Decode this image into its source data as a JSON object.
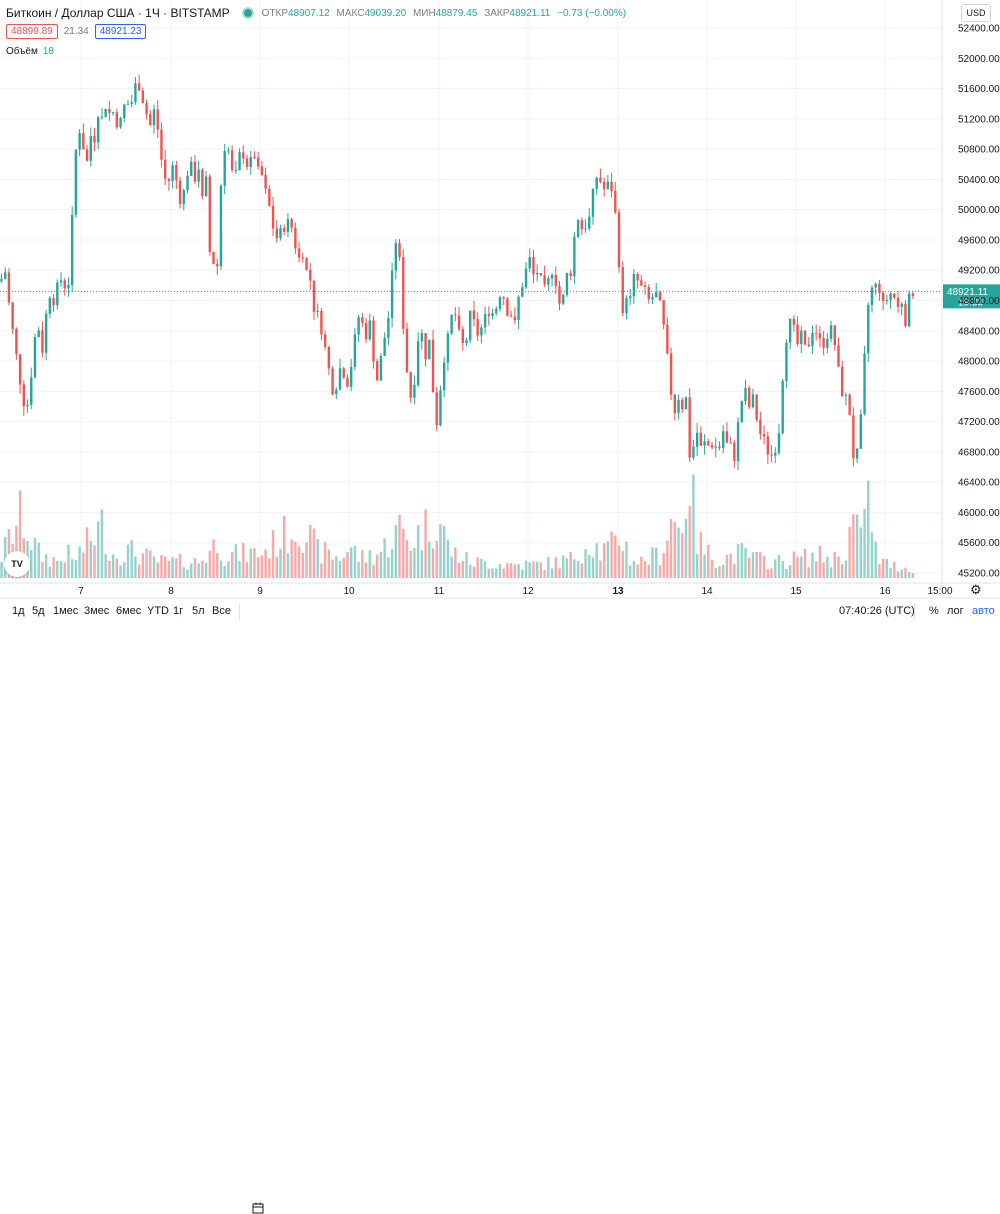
{
  "header": {
    "symbol": "Биткоин / Доллар США · 1Ч · BITSTAMP",
    "open_label": "ОТКР",
    "open": "48907.12",
    "high_label": "МАКС",
    "high": "49039.20",
    "low_label": "МИН",
    "low": "48879.45",
    "close_label": "ЗАКР",
    "close": "48921.11",
    "change": "−0.73 (−0.00%)",
    "bid": "48899.89",
    "spread": "21.34",
    "ask": "48921.23",
    "volume_label": "Объём",
    "volume_value": "18"
  },
  "currency_button": "USD",
  "bottom_toolbar": {
    "timeframes": [
      "1д",
      "5д",
      "1мес",
      "3мес",
      "6мес",
      "YTD",
      "1г",
      "5л",
      "Все"
    ],
    "clock": "07:40:26 (UTC)",
    "percent": "%",
    "log": "лог",
    "auto": "авто"
  },
  "logo_text": "TV",
  "chart_data": {
    "type": "candlestick",
    "title": "Биткоин / Доллар США · 1Ч · BITSTAMP",
    "y_axis_ticks": [
      52400,
      52000,
      51600,
      51200,
      50800,
      50400,
      50000,
      49600,
      49200,
      48800,
      48400,
      48000,
      47600,
      47200,
      46800,
      46400,
      46000,
      45600,
      45200
    ],
    "y_axis_tick_labels": [
      "52400.00",
      "52000.00",
      "51600.00",
      "51200.00",
      "50800.00",
      "50400.00",
      "50000.00",
      "49600.00",
      "49200.00",
      "48800.00",
      "48400.00",
      "48000.00",
      "47600.00",
      "47200.00",
      "46800.00",
      "46400.00",
      "46000.00",
      "45600.00",
      "45200.00"
    ],
    "y_range": [
      45100,
      52500
    ],
    "x_axis_labels": [
      "7",
      "8",
      "9",
      "10",
      "11",
      "12",
      "13",
      "14",
      "15",
      "16",
      "15:00"
    ],
    "x_axis_bold": [
      "13"
    ],
    "last_price": 48921.11,
    "last_price_label": "48921.11",
    "countdown_label": "19:33",
    "colors": {
      "up": "#26a69a",
      "down": "#ef5350",
      "up_volume": "#94d3cc",
      "down_volume": "#f5a9a8",
      "grid": "#f0f3fa"
    },
    "series_path": [
      [
        0,
        49050
      ],
      [
        6,
        49200
      ],
      [
        10,
        48600
      ],
      [
        14,
        48300
      ],
      [
        18,
        47900
      ],
      [
        22,
        47600
      ],
      [
        26,
        47300
      ],
      [
        30,
        47650
      ],
      [
        34,
        48250
      ],
      [
        38,
        48500
      ],
      [
        42,
        48100
      ],
      [
        46,
        48600
      ],
      [
        50,
        48900
      ],
      [
        54,
        48800
      ],
      [
        58,
        49000
      ],
      [
        62,
        49100
      ],
      [
        66,
        48950
      ],
      [
        70,
        49100
      ],
      [
        74,
        50500
      ],
      [
        78,
        51100
      ],
      [
        82,
        51000
      ],
      [
        86,
        50500
      ],
      [
        90,
        51000
      ],
      [
        94,
        50900
      ],
      [
        98,
        51300
      ],
      [
        102,
        51200
      ],
      [
        106,
        51400
      ],
      [
        110,
        51250
      ],
      [
        114,
        51300
      ],
      [
        118,
        51100
      ],
      [
        122,
        51200
      ],
      [
        126,
        51500
      ],
      [
        130,
        51300
      ],
      [
        134,
        51600
      ],
      [
        138,
        51700
      ],
      [
        142,
        51500
      ],
      [
        146,
        51300
      ],
      [
        150,
        51100
      ],
      [
        154,
        51300
      ],
      [
        158,
        51050
      ],
      [
        162,
        50600
      ],
      [
        166,
        50350
      ],
      [
        170,
        50400
      ],
      [
        174,
        50650
      ],
      [
        178,
        50200
      ],
      [
        182,
        50100
      ],
      [
        186,
        50400
      ],
      [
        190,
        50650
      ],
      [
        194,
        50350
      ],
      [
        198,
        50650
      ],
      [
        202,
        50100
      ],
      [
        206,
        50400
      ],
      [
        210,
        49400
      ],
      [
        214,
        49300
      ],
      [
        218,
        49250
      ],
      [
        222,
        50700
      ],
      [
        226,
        50900
      ],
      [
        230,
        50700
      ],
      [
        234,
        50300
      ],
      [
        238,
        50650
      ],
      [
        242,
        50800
      ],
      [
        246,
        50600
      ],
      [
        250,
        50600
      ],
      [
        254,
        50750
      ],
      [
        258,
        50500
      ],
      [
        262,
        50450
      ],
      [
        266,
        50200
      ],
      [
        270,
        50000
      ],
      [
        274,
        49700
      ],
      [
        278,
        49600
      ],
      [
        282,
        49750
      ],
      [
        286,
        49800
      ],
      [
        290,
        49850
      ],
      [
        294,
        49650
      ],
      [
        298,
        49300
      ],
      [
        302,
        49500
      ],
      [
        306,
        49200
      ],
      [
        310,
        49100
      ],
      [
        314,
        48700
      ],
      [
        318,
        48600
      ],
      [
        322,
        48400
      ],
      [
        326,
        48100
      ],
      [
        330,
        47800
      ],
      [
        334,
        47550
      ],
      [
        338,
        47800
      ],
      [
        342,
        48000
      ],
      [
        346,
        47650
      ],
      [
        350,
        47850
      ],
      [
        354,
        48200
      ],
      [
        358,
        48600
      ],
      [
        362,
        48500
      ],
      [
        366,
        48350
      ],
      [
        370,
        48500
      ],
      [
        374,
        48000
      ],
      [
        378,
        47700
      ],
      [
        382,
        48150
      ],
      [
        386,
        48400
      ],
      [
        390,
        48700
      ],
      [
        394,
        49500
      ],
      [
        398,
        49700
      ],
      [
        402,
        48700
      ],
      [
        406,
        48000
      ],
      [
        410,
        47500
      ],
      [
        414,
        47700
      ],
      [
        418,
        48300
      ],
      [
        422,
        48350
      ],
      [
        426,
        48050
      ],
      [
        430,
        48300
      ],
      [
        434,
        47400
      ],
      [
        438,
        47100
      ],
      [
        442,
        48000
      ],
      [
        446,
        48100
      ],
      [
        450,
        48500
      ],
      [
        454,
        48700
      ],
      [
        458,
        48400
      ],
      [
        462,
        48200
      ],
      [
        466,
        48250
      ],
      [
        470,
        48600
      ],
      [
        474,
        48500
      ],
      [
        478,
        48350
      ],
      [
        482,
        48450
      ],
      [
        486,
        48600
      ],
      [
        490,
        48700
      ],
      [
        494,
        48600
      ],
      [
        498,
        48800
      ],
      [
        502,
        49000
      ],
      [
        506,
        48650
      ],
      [
        510,
        48700
      ],
      [
        514,
        48400
      ],
      [
        518,
        48800
      ],
      [
        522,
        49000
      ],
      [
        526,
        49200
      ],
      [
        530,
        49350
      ],
      [
        534,
        49100
      ],
      [
        538,
        49200
      ],
      [
        542,
        49000
      ],
      [
        546,
        48900
      ],
      [
        550,
        49150
      ],
      [
        554,
        49250
      ],
      [
        558,
        48800
      ],
      [
        562,
        48700
      ],
      [
        566,
        49150
      ],
      [
        570,
        49100
      ],
      [
        574,
        49600
      ],
      [
        578,
        49900
      ],
      [
        582,
        49750
      ],
      [
        586,
        49800
      ],
      [
        590,
        49900
      ],
      [
        594,
        50300
      ],
      [
        598,
        50500
      ],
      [
        602,
        50300
      ],
      [
        606,
        50250
      ],
      [
        610,
        50400
      ],
      [
        614,
        50100
      ],
      [
        618,
        49600
      ],
      [
        622,
        48500
      ],
      [
        626,
        48900
      ],
      [
        630,
        48800
      ],
      [
        634,
        49100
      ],
      [
        638,
        49050
      ],
      [
        642,
        48950
      ],
      [
        646,
        48900
      ],
      [
        650,
        48750
      ],
      [
        654,
        48900
      ],
      [
        658,
        48850
      ],
      [
        662,
        48600
      ],
      [
        666,
        48200
      ],
      [
        670,
        47700
      ],
      [
        674,
        47300
      ],
      [
        678,
        47550
      ],
      [
        682,
        47400
      ],
      [
        686,
        47500
      ],
      [
        690,
        46700
      ],
      [
        694,
        46900
      ],
      [
        698,
        47100
      ],
      [
        702,
        46750
      ],
      [
        706,
        47000
      ],
      [
        710,
        46800
      ],
      [
        714,
        47000
      ],
      [
        718,
        46700
      ],
      [
        722,
        47150
      ],
      [
        726,
        46900
      ],
      [
        730,
        46900
      ],
      [
        734,
        46700
      ],
      [
        738,
        47150
      ],
      [
        742,
        47500
      ],
      [
        746,
        47600
      ],
      [
        750,
        47350
      ],
      [
        754,
        47550
      ],
      [
        758,
        47100
      ],
      [
        762,
        47000
      ],
      [
        766,
        46900
      ],
      [
        770,
        46700
      ],
      [
        774,
        46850
      ],
      [
        778,
        46900
      ],
      [
        782,
        47700
      ],
      [
        786,
        48300
      ],
      [
        790,
        48500
      ],
      [
        794,
        48400
      ],
      [
        798,
        48200
      ],
      [
        802,
        48350
      ],
      [
        806,
        48100
      ],
      [
        810,
        48300
      ],
      [
        814,
        48500
      ],
      [
        818,
        48300
      ],
      [
        822,
        48200
      ],
      [
        826,
        48300
      ],
      [
        830,
        48450
      ],
      [
        834,
        48300
      ],
      [
        838,
        47900
      ],
      [
        842,
        47600
      ],
      [
        846,
        47500
      ],
      [
        850,
        47300
      ],
      [
        854,
        46650
      ],
      [
        858,
        46800
      ],
      [
        862,
        47400
      ],
      [
        866,
        48400
      ],
      [
        870,
        49000
      ],
      [
        874,
        48900
      ],
      [
        878,
        49100
      ],
      [
        882,
        48700
      ],
      [
        886,
        48800
      ],
      [
        890,
        48900
      ],
      [
        894,
        48850
      ],
      [
        898,
        48700
      ],
      [
        902,
        48800
      ],
      [
        906,
        48500
      ],
      [
        910,
        48900
      ],
      [
        913,
        48921
      ]
    ],
    "volume_profile": [
      [
        0,
        20
      ],
      [
        12,
        50
      ],
      [
        22,
        70
      ],
      [
        30,
        45
      ],
      [
        40,
        25
      ],
      [
        60,
        18
      ],
      [
        66,
        30
      ],
      [
        72,
        18
      ],
      [
        104,
        60
      ],
      [
        110,
        26
      ],
      [
        130,
        30
      ],
      [
        160,
        18
      ],
      [
        200,
        18
      ],
      [
        214,
        35
      ],
      [
        218,
        48
      ],
      [
        224,
        25
      ],
      [
        262,
        28
      ],
      [
        300,
        60
      ],
      [
        318,
        30
      ],
      [
        340,
        22
      ],
      [
        350,
        35
      ],
      [
        360,
        22
      ],
      [
        380,
        28
      ],
      [
        400,
        55
      ],
      [
        410,
        40
      ],
      [
        438,
        68
      ],
      [
        450,
        30
      ],
      [
        470,
        18
      ],
      [
        510,
        15
      ],
      [
        540,
        15
      ],
      [
        570,
        20
      ],
      [
        592,
        42
      ],
      [
        600,
        28
      ],
      [
        616,
        38
      ],
      [
        622,
        48
      ],
      [
        630,
        22
      ],
      [
        640,
        18
      ],
      [
        662,
        28
      ],
      [
        672,
        70
      ],
      [
        680,
        50
      ],
      [
        690,
        120
      ],
      [
        696,
        45
      ],
      [
        706,
        28
      ],
      [
        720,
        20
      ],
      [
        740,
        28
      ],
      [
        760,
        20
      ],
      [
        778,
        18
      ],
      [
        800,
        22
      ],
      [
        822,
        25
      ],
      [
        832,
        20
      ],
      [
        846,
        30
      ],
      [
        854,
        70
      ],
      [
        858,
        45
      ],
      [
        862,
        40
      ],
      [
        866,
        140
      ],
      [
        870,
        50
      ],
      [
        880,
        18
      ],
      [
        900,
        12
      ],
      [
        913,
        10
      ]
    ]
  }
}
